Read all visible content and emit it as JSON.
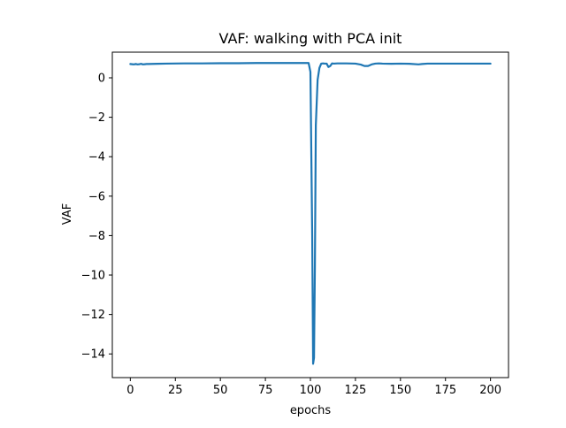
{
  "chart_data": {
    "type": "line",
    "title": "VAF: walking with PCA init",
    "xlabel": "epochs",
    "ylabel": "VAF",
    "xlim": [
      -10,
      210
    ],
    "ylim": [
      -15.2,
      1.3
    ],
    "xticks": [
      0,
      25,
      50,
      75,
      100,
      125,
      150,
      175,
      200
    ],
    "xtick_labels": [
      "0",
      "25",
      "50",
      "75",
      "100",
      "125",
      "150",
      "175",
      "200"
    ],
    "yticks": [
      0,
      -2,
      -4,
      -6,
      -8,
      -10,
      -12,
      -14
    ],
    "ytick_labels": [
      "0",
      "−2",
      "−4",
      "−6",
      "−8",
      "−10",
      "−12",
      "−14"
    ],
    "grid": false,
    "series": [
      {
        "color": "#1f77b4",
        "x": [
          0,
          1,
          2,
          3,
          4,
          5,
          6,
          7,
          8,
          9,
          10,
          15,
          20,
          30,
          40,
          50,
          60,
          70,
          80,
          90,
          98,
          99,
          100,
          101,
          101.5,
          102,
          102.5,
          103,
          104,
          105,
          106,
          107,
          108,
          109,
          110,
          111,
          112,
          113,
          115,
          120,
          125,
          128,
          130,
          132,
          134,
          136,
          138,
          140,
          145,
          150,
          155,
          160,
          162,
          165,
          170,
          175,
          180,
          185,
          190,
          195,
          200
        ],
        "y": [
          0.7,
          0.69,
          0.68,
          0.7,
          0.68,
          0.69,
          0.71,
          0.68,
          0.69,
          0.7,
          0.7,
          0.71,
          0.72,
          0.73,
          0.73,
          0.74,
          0.74,
          0.75,
          0.75,
          0.75,
          0.75,
          0.75,
          0.3,
          -8.0,
          -14.5,
          -14.2,
          -9.5,
          -2.4,
          -0.1,
          0.5,
          0.72,
          0.73,
          0.72,
          0.72,
          0.55,
          0.6,
          0.73,
          0.72,
          0.73,
          0.73,
          0.72,
          0.67,
          0.6,
          0.6,
          0.68,
          0.72,
          0.73,
          0.72,
          0.71,
          0.72,
          0.71,
          0.68,
          0.7,
          0.72,
          0.72,
          0.72,
          0.72,
          0.72,
          0.72,
          0.72,
          0.72
        ]
      }
    ]
  }
}
